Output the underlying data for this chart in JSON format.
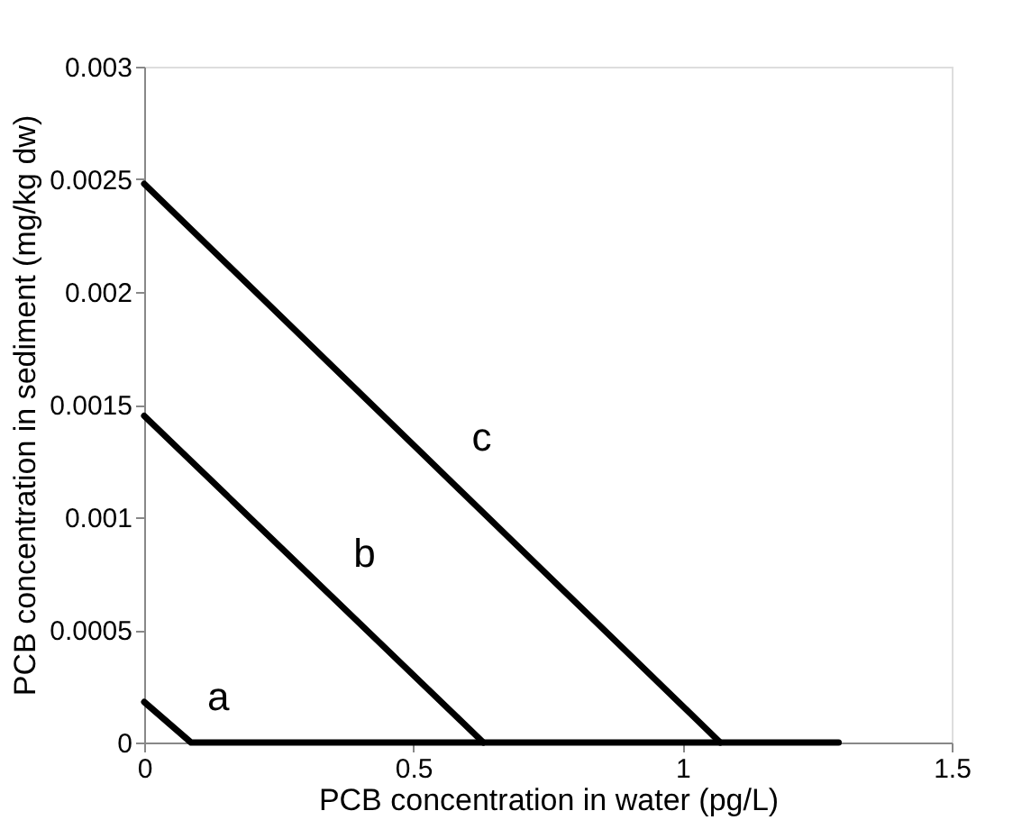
{
  "chart_data": {
    "type": "line",
    "xlabel": "PCB concentration in water (pg/L)",
    "ylabel": "PCB concentration in sediment (mg/kg dw)",
    "xlim": [
      0,
      1.5
    ],
    "xticks": [
      0,
      0.5,
      1,
      1.5
    ],
    "ylim": [
      0,
      0.003
    ],
    "yticks": [
      0,
      0.0005,
      0.001,
      0.0015,
      0.002,
      0.0025,
      0.003
    ],
    "grid": false,
    "legend": false,
    "marker": "none",
    "line_style": "solid",
    "series": [
      {
        "color": "#000000",
        "x": [
          0,
          0.087,
          1.29
        ],
        "values": [
          0.00018,
          0,
          0
        ]
      },
      {
        "color": "#000000",
        "x": [
          0,
          0.63
        ],
        "values": [
          0.00145,
          0
        ]
      },
      {
        "color": "#000000",
        "x": [
          0,
          1.07
        ],
        "values": [
          0.00248,
          0
        ]
      }
    ],
    "annotations": [
      "a",
      "b",
      "c"
    ]
  }
}
